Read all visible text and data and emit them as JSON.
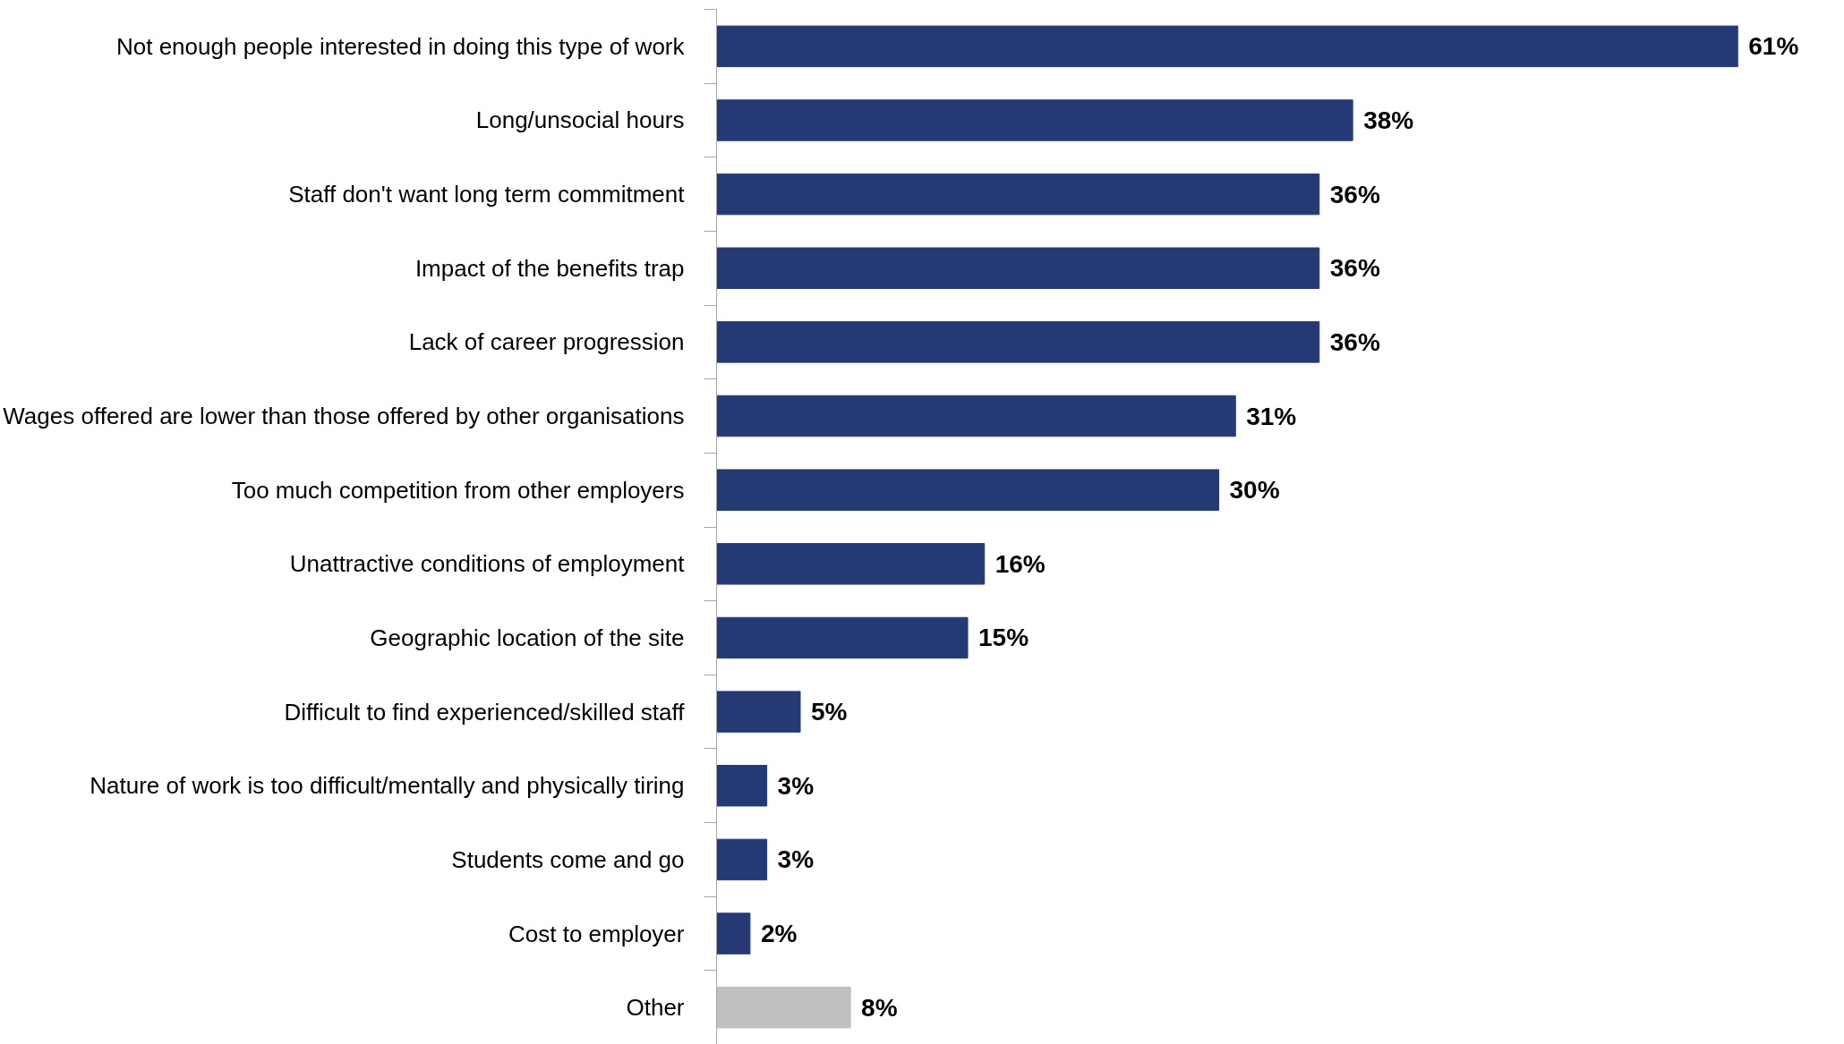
{
  "chart_data": {
    "type": "bar",
    "orientation": "horizontal",
    "categories": [
      "Not enough people interested in doing this type of work",
      "Long/unsocial hours",
      "Staff don't want long term commitment",
      "Impact of the benefits trap",
      "Lack of career progression",
      "Wages offered are lower than those offered by other organisations",
      "Too much competition from other employers",
      "Unattractive conditions of employment",
      "Geographic location of the site",
      "Difficult to find experienced/skilled staff",
      "Nature of work is too difficult/mentally and physically tiring",
      "Students come and go",
      "Cost to employer",
      "Other"
    ],
    "values": [
      61,
      38,
      36,
      36,
      36,
      31,
      30,
      16,
      15,
      5,
      3,
      3,
      2,
      8
    ],
    "colors": [
      "#253a75",
      "#253a75",
      "#253a75",
      "#253a75",
      "#253a75",
      "#253a75",
      "#253a75",
      "#253a75",
      "#253a75",
      "#253a75",
      "#253a75",
      "#253a75",
      "#253a75",
      "#bfbfbf"
    ],
    "value_labels": [
      "61%",
      "38%",
      "36%",
      "36%",
      "36%",
      "31%",
      "30%",
      "16%",
      "15%",
      "5%",
      "3%",
      "3%",
      "2%",
      "8%"
    ],
    "grid": false
  }
}
